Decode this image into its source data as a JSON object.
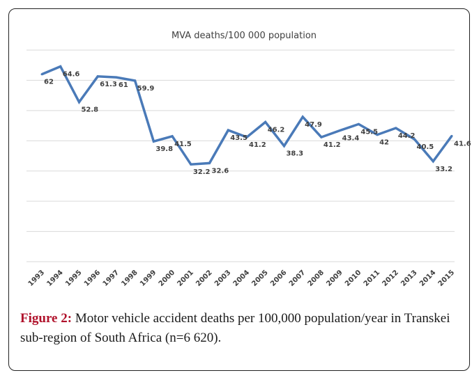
{
  "chart_data": {
    "type": "line",
    "title": "MVA deaths/100 000 population",
    "xlabel": "",
    "ylabel": "",
    "x": [
      "1993",
      "1994",
      "1995",
      "1996",
      "1997",
      "1998",
      "1999",
      "2000",
      "2001",
      "2002",
      "2003",
      "2004",
      "2005",
      "2006",
      "2007",
      "2008",
      "2009",
      "2010",
      "2011",
      "2012",
      "2013",
      "2014",
      "2015"
    ],
    "series": [
      {
        "values": [
          62,
          64.6,
          52.8,
          61.3,
          61,
          59.9,
          39.8,
          41.5,
          32.2,
          32.6,
          43.5,
          41.2,
          46.2,
          38.3,
          47.9,
          41.2,
          43.4,
          45.5,
          42,
          44.2,
          40.5,
          33.2,
          41.6
        ],
        "labels": [
          "62",
          "64.6",
          "52.8",
          "61.3",
          "61",
          "59.9",
          "39.8",
          "41.5",
          "32.2",
          "32.6",
          "43.5",
          "41.2",
          "46.2",
          "38.3",
          "47.9",
          "41.2",
          "43.4",
          "45.5",
          "42",
          "44.2",
          "40.5",
          "33.2",
          "41.6"
        ],
        "color": "#4a7ab8"
      }
    ],
    "ylim": [
      0,
      70
    ],
    "gridlines": [
      0,
      10,
      20,
      30,
      40,
      50,
      60,
      70
    ],
    "grid": true,
    "legend": "none"
  },
  "caption": {
    "lead": "Figure 2:",
    "text": " Motor vehicle accident deaths per 100,000 population/year in Transkei sub-region of South Africa (n=6 620)."
  },
  "colors": {
    "line": "#4a7ab8",
    "grid": "#d9d9d9",
    "caption_lead": "#b0122b"
  }
}
